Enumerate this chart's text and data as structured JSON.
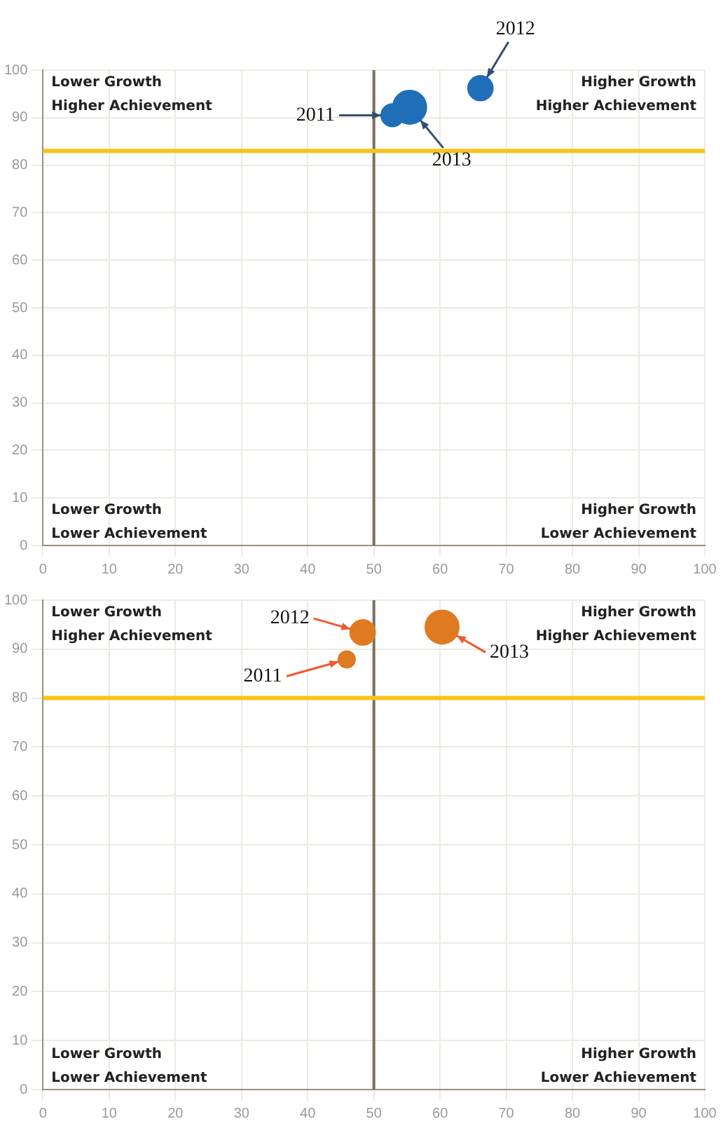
{
  "chart_data": [
    {
      "type": "bubble",
      "color": "#1f6fb8",
      "xlim": [
        0,
        100
      ],
      "ylim": [
        0,
        100
      ],
      "xticks": [
        0,
        10,
        20,
        30,
        40,
        50,
        60,
        70,
        80,
        90,
        100
      ],
      "yticks": [
        0,
        10,
        20,
        30,
        40,
        50,
        60,
        70,
        80,
        90,
        100
      ],
      "grid": true,
      "series": [
        {
          "name": "2011",
          "x": [
            52.8
          ],
          "values": [
            90.5
          ],
          "sizes": [
            0.45
          ]
        },
        {
          "name": "2012",
          "x": [
            66.1
          ],
          "values": [
            96.2
          ],
          "sizes": [
            0.55
          ]
        },
        {
          "name": "2013",
          "x": [
            55.4
          ],
          "values": [
            92.2
          ],
          "sizes": [
            1
          ]
        }
      ],
      "ref_lines": [
        {
          "axis": "x",
          "value": 50,
          "color": "#7a6e5f"
        },
        {
          "axis": "y",
          "value": 83,
          "color": "#f5c518"
        }
      ],
      "annotations": [
        "Lower Growth\nHigher Achievement",
        "Higher Growth\nHigher Achievement",
        "Lower Growth\nLower Achievement",
        "Higher Growth\nLower Achievement"
      ]
    },
    {
      "type": "bubble",
      "color": "#e07a20",
      "xlim": [
        0,
        100
      ],
      "ylim": [
        0,
        100
      ],
      "xticks": [
        0,
        10,
        20,
        30,
        40,
        50,
        60,
        70,
        80,
        90,
        100
      ],
      "yticks": [
        0,
        10,
        20,
        30,
        40,
        50,
        60,
        70,
        80,
        90,
        100
      ],
      "grid": true,
      "series": [
        {
          "name": "2011",
          "x": [
            45.9
          ],
          "values": [
            87.9
          ],
          "sizes": [
            0.25
          ]
        },
        {
          "name": "2012",
          "x": [
            48.3
          ],
          "values": [
            93.4
          ],
          "sizes": [
            0.56
          ]
        },
        {
          "name": "2013",
          "x": [
            60.3
          ],
          "values": [
            94.5
          ],
          "sizes": [
            1
          ]
        }
      ],
      "ref_lines": [
        {
          "axis": "x",
          "value": 50,
          "color": "#7a6e5f"
        },
        {
          "axis": "y",
          "value": 80,
          "color": "#f5c518"
        }
      ],
      "annotations": [
        "Lower Growth\nHigher Achievement",
        "Higher Growth\nHigher Achievement",
        "Lower Growth\nLower Achievement",
        "Higher Growth\nLower Achievement"
      ]
    }
  ]
}
